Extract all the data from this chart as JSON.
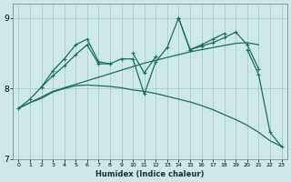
{
  "xlabel": "Humidex (Indice chaleur)",
  "bg_color": "#cce8e8",
  "grid_color": "#aacccc",
  "line_color": "#1a6e5e",
  "x_values": [
    0,
    1,
    2,
    3,
    4,
    5,
    6,
    7,
    8,
    9,
    10,
    11,
    12,
    13,
    14,
    15,
    16,
    17,
    18,
    19,
    20,
    21,
    22,
    23
  ],
  "line_zigzag": [
    null,
    null,
    8.02,
    8.25,
    8.42,
    8.62,
    8.7,
    8.38,
    8.35,
    null,
    8.5,
    8.22,
    8.45,
    null,
    9.0,
    8.55,
    8.62,
    8.7,
    8.78,
    null,
    null,
    null,
    null,
    null
  ],
  "line_main": [
    7.72,
    7.85,
    8.02,
    8.18,
    8.32,
    8.48,
    8.62,
    8.35,
    8.35,
    8.42,
    8.42,
    7.92,
    8.38,
    8.58,
    9.0,
    8.55,
    8.6,
    8.65,
    8.72,
    8.8,
    8.62,
    8.28,
    null,
    null
  ],
  "line_trend_up": [
    7.72,
    7.8,
    7.88,
    7.96,
    8.01,
    8.06,
    8.11,
    8.16,
    8.21,
    8.26,
    8.31,
    8.36,
    8.4,
    8.44,
    8.48,
    8.52,
    8.55,
    8.58,
    8.61,
    8.64,
    8.65,
    8.62,
    null,
    null
  ],
  "line_curve_down": [
    7.72,
    7.8,
    7.86,
    7.95,
    8.0,
    8.04,
    8.05,
    8.04,
    8.03,
    8.01,
    7.98,
    7.96,
    7.93,
    7.89,
    7.85,
    7.81,
    7.76,
    7.7,
    7.63,
    7.56,
    7.48,
    7.38,
    7.26,
    7.18
  ],
  "line_end": [
    null,
    null,
    null,
    null,
    null,
    null,
    null,
    null,
    null,
    null,
    null,
    null,
    null,
    null,
    null,
    null,
    null,
    null,
    null,
    null,
    8.55,
    8.2,
    7.38,
    7.18
  ],
  "ylim": [
    7.0,
    9.2
  ],
  "yticks": [
    7,
    8,
    9
  ],
  "xticks": [
    0,
    1,
    2,
    3,
    4,
    5,
    6,
    7,
    8,
    9,
    10,
    11,
    12,
    13,
    14,
    15,
    16,
    17,
    18,
    19,
    20,
    21,
    22,
    23
  ]
}
